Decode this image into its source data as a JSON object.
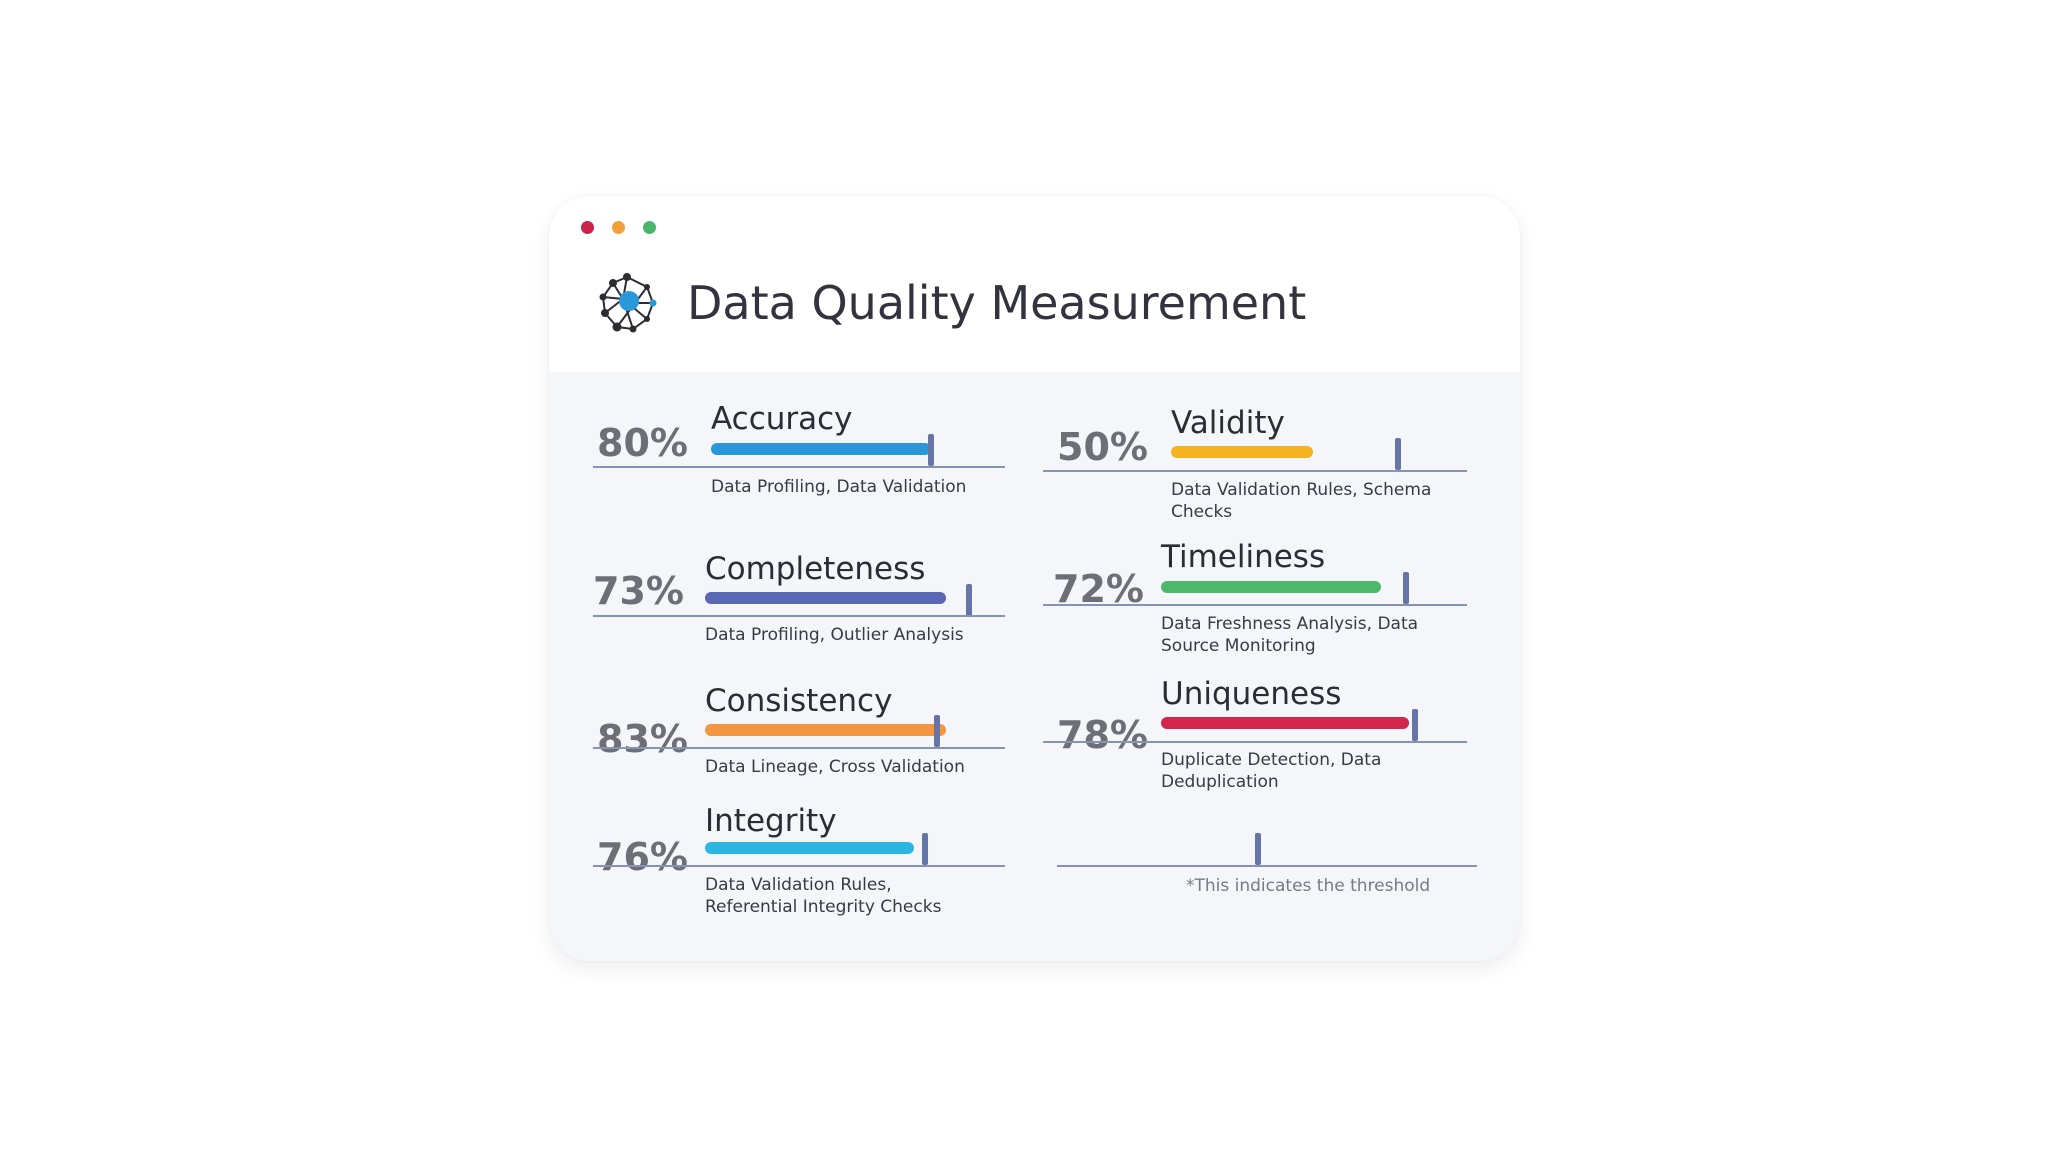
{
  "window": {
    "controls": [
      {
        "name": "close",
        "color": "#c8244a"
      },
      {
        "name": "minimize",
        "color": "#f2a13a"
      },
      {
        "name": "maximize",
        "color": "#4bb56a"
      }
    ]
  },
  "header": {
    "title": "Data Quality Measurement",
    "logo_icon": "network-globe-icon"
  },
  "metrics": [
    {
      "percent_label": "80%",
      "name": "Accuracy",
      "value": 80,
      "threshold": 80,
      "color": "#2a98d8",
      "description": "Data Profiling, Data Validation"
    },
    {
      "percent_label": "50%",
      "name": "Validity",
      "value": 50,
      "threshold": 80,
      "color": "#f4b422",
      "description": "Data Validation Rules, Schema Checks"
    },
    {
      "percent_label": "73%",
      "name": "Completeness",
      "value": 73,
      "threshold": 80,
      "color": "#5a68b4",
      "description": "Data Profiling, Outlier Analysis"
    },
    {
      "percent_label": "72%",
      "name": "Timeliness",
      "value": 72,
      "threshold": 80,
      "color": "#4cb86a",
      "description": "Data Freshness Analysis, Data Source Monitoring"
    },
    {
      "percent_label": "83%",
      "name": "Consistency",
      "value": 83,
      "threshold": 80,
      "color": "#f29640",
      "description": "Data Lineage, Cross Validation"
    },
    {
      "percent_label": "78%",
      "name": "Uniqueness",
      "value": 78,
      "threshold": 80,
      "color": "#d4264a",
      "description": "Duplicate Detection, Data Deduplication"
    },
    {
      "percent_label": "76%",
      "name": "Integrity",
      "value": 76,
      "threshold": 80,
      "color": "#2cb6e4",
      "description": "Data Validation Rules, Referential Integrity Checks"
    }
  ],
  "legend": {
    "note": "*This indicates the threshold"
  }
}
